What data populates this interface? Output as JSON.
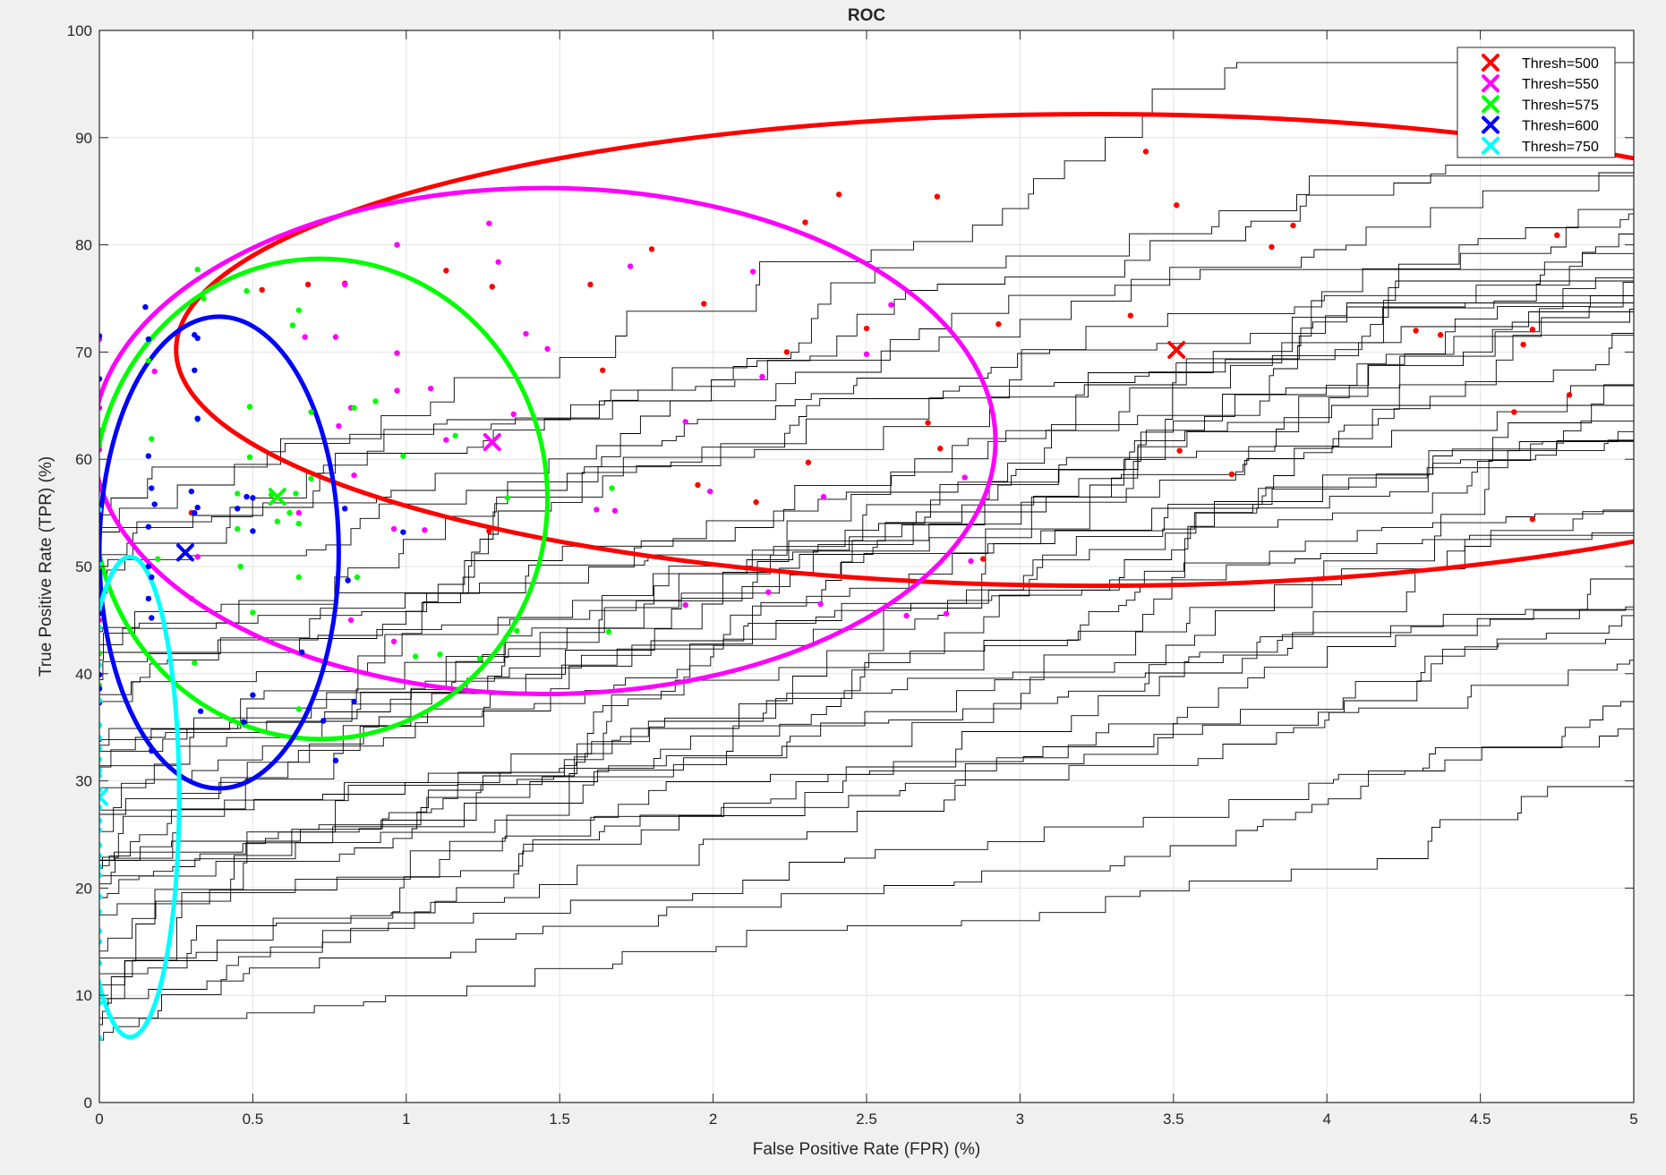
{
  "chart_data": {
    "type": "scatter",
    "title": "ROC",
    "xlabel": "False Positive Rate (FPR) (%)",
    "ylabel": "True Positive Rate (TPR) (%)",
    "xlim": [
      0,
      5
    ],
    "ylim": [
      0,
      100
    ],
    "x_ticks": [
      0,
      0.5,
      1,
      1.5,
      2,
      2.5,
      3,
      3.5,
      4,
      4.5,
      5
    ],
    "y_ticks": [
      0,
      10,
      20,
      30,
      40,
      50,
      60,
      70,
      80,
      90,
      100
    ],
    "x_tick_labels": [
      "0",
      "0.5",
      "1",
      "1.5",
      "2",
      "2.5",
      "3",
      "3.5",
      "4",
      "4.5",
      "5"
    ],
    "y_tick_labels": [
      "0",
      "10",
      "20",
      "30",
      "40",
      "50",
      "60",
      "70",
      "80",
      "90",
      "100"
    ],
    "grid": true,
    "legend_position": "top-right",
    "curve_color": "#000000",
    "series": [
      {
        "name": "Thresh=500",
        "color": "#ff0000",
        "mean": [
          3.51,
          70.2
        ],
        "ellipse": {
          "cx": 3.25,
          "cy": 70.2,
          "rx": 3.0,
          "ry": 22.0
        },
        "points": [
          [
            0.53,
            75.8
          ],
          [
            0.68,
            76.3
          ],
          [
            0.8,
            76.4
          ],
          [
            1.13,
            77.6
          ],
          [
            1.28,
            76.1
          ],
          [
            1.8,
            79.6
          ],
          [
            1.6,
            76.3
          ],
          [
            1.64,
            68.3
          ],
          [
            1.97,
            74.5
          ],
          [
            1.95,
            57.6
          ],
          [
            2.14,
            56.0
          ],
          [
            2.24,
            70.0
          ],
          [
            2.3,
            82.1
          ],
          [
            2.31,
            59.7
          ],
          [
            2.41,
            84.7
          ],
          [
            2.5,
            72.2
          ],
          [
            2.7,
            63.4
          ],
          [
            2.73,
            84.5
          ],
          [
            2.74,
            61.0
          ],
          [
            2.93,
            72.6
          ],
          [
            2.88,
            50.7
          ],
          [
            3.41,
            88.7
          ],
          [
            3.36,
            73.4
          ],
          [
            3.51,
            83.7
          ],
          [
            3.52,
            60.8
          ],
          [
            3.69,
            58.6
          ],
          [
            3.82,
            79.8
          ],
          [
            3.89,
            81.8
          ],
          [
            4.29,
            72.0
          ],
          [
            4.37,
            71.6
          ],
          [
            4.61,
            64.4
          ],
          [
            4.64,
            70.7
          ],
          [
            4.67,
            72.1
          ],
          [
            4.67,
            54.4
          ],
          [
            4.75,
            80.9
          ],
          [
            4.79,
            66.0
          ],
          [
            0.3,
            55.0
          ],
          [
            1.27,
            53.3
          ]
        ]
      },
      {
        "name": "Thresh=550",
        "color": "#ff00ff",
        "mean": [
          1.28,
          61.6
        ],
        "ellipse": {
          "cx": 1.45,
          "cy": 61.7,
          "rx": 1.47,
          "ry": 23.6
        },
        "points": [
          [
            0.0,
            71.2
          ],
          [
            0.0,
            64.8
          ],
          [
            0.0,
            60.9
          ],
          [
            0.0,
            55.0
          ],
          [
            0.0,
            45.0
          ],
          [
            0.18,
            68.2
          ],
          [
            0.32,
            50.9
          ],
          [
            0.3,
            47.0
          ],
          [
            0.65,
            55.0
          ],
          [
            0.67,
            71.4
          ],
          [
            0.77,
            71.4
          ],
          [
            0.78,
            63.1
          ],
          [
            0.8,
            76.3
          ],
          [
            0.82,
            64.8
          ],
          [
            0.83,
            58.5
          ],
          [
            0.82,
            45.0
          ],
          [
            0.96,
            53.5
          ],
          [
            0.97,
            80.0
          ],
          [
            0.97,
            69.9
          ],
          [
            0.97,
            66.4
          ],
          [
            0.96,
            43.0
          ],
          [
            1.06,
            53.4
          ],
          [
            1.08,
            66.6
          ],
          [
            1.13,
            61.8
          ],
          [
            1.27,
            82.0
          ],
          [
            1.3,
            78.4
          ],
          [
            1.35,
            64.2
          ],
          [
            1.39,
            71.7
          ],
          [
            1.46,
            70.3
          ],
          [
            1.62,
            55.3
          ],
          [
            1.68,
            55.2
          ],
          [
            1.73,
            78.0
          ],
          [
            1.91,
            63.5
          ],
          [
            1.91,
            46.4
          ],
          [
            1.99,
            57.0
          ],
          [
            2.13,
            77.5
          ],
          [
            2.16,
            67.7
          ],
          [
            2.18,
            47.6
          ],
          [
            2.35,
            46.5
          ],
          [
            2.36,
            56.5
          ],
          [
            2.5,
            69.8
          ],
          [
            2.58,
            74.4
          ],
          [
            2.63,
            45.4
          ],
          [
            2.76,
            45.6
          ],
          [
            2.82,
            58.3
          ],
          [
            2.84,
            50.5
          ]
        ]
      },
      {
        "name": "Thresh=575",
        "color": "#00ff00",
        "mean": [
          0.58,
          56.5
        ],
        "ellipse": {
          "cx": 0.72,
          "cy": 56.3,
          "rx": 0.74,
          "ry": 22.4
        },
        "points": [
          [
            0.0,
            62.7
          ],
          [
            0.0,
            61.3
          ],
          [
            0.0,
            50.0
          ],
          [
            0.0,
            41.9
          ],
          [
            0.0,
            38.9
          ],
          [
            0.16,
            69.2
          ],
          [
            0.17,
            61.9
          ],
          [
            0.19,
            50.7
          ],
          [
            0.32,
            77.7
          ],
          [
            0.32,
            63.7
          ],
          [
            0.31,
            41.0
          ],
          [
            0.34,
            75.0
          ],
          [
            0.45,
            56.8
          ],
          [
            0.45,
            53.5
          ],
          [
            0.46,
            50.0
          ],
          [
            0.48,
            75.7
          ],
          [
            0.49,
            64.9
          ],
          [
            0.49,
            60.2
          ],
          [
            0.5,
            45.7
          ],
          [
            0.56,
            56.7
          ],
          [
            0.58,
            54.2
          ],
          [
            0.62,
            55.0
          ],
          [
            0.63,
            72.5
          ],
          [
            0.64,
            56.8
          ],
          [
            0.65,
            36.7
          ],
          [
            0.65,
            73.9
          ],
          [
            0.65,
            49.0
          ],
          [
            0.65,
            54.0
          ],
          [
            0.69,
            58.2
          ],
          [
            0.69,
            64.4
          ],
          [
            0.83,
            64.8
          ],
          [
            0.84,
            49.0
          ],
          [
            0.9,
            65.4
          ],
          [
            1.03,
            41.6
          ],
          [
            1.11,
            41.8
          ],
          [
            1.16,
            62.2
          ],
          [
            1.24,
            41.4
          ],
          [
            1.33,
            56.4
          ],
          [
            1.36,
            44.0
          ],
          [
            1.67,
            57.3
          ],
          [
            1.66,
            43.9
          ],
          [
            0.99,
            60.3
          ]
        ]
      },
      {
        "name": "Thresh=600",
        "color": "#0000ff",
        "mean": [
          0.28,
          51.3
        ],
        "ellipse": {
          "cx": 0.39,
          "cy": 51.3,
          "rx": 0.39,
          "ry": 22.0
        },
        "points": [
          [
            0.0,
            71.5
          ],
          [
            0.0,
            67.5
          ],
          [
            0.0,
            54.8
          ],
          [
            0.0,
            54.1
          ],
          [
            0.0,
            45.6
          ],
          [
            0.0,
            39.9
          ],
          [
            0.0,
            38.6
          ],
          [
            0.0,
            37.3
          ],
          [
            0.0,
            33.9
          ],
          [
            0.15,
            74.2
          ],
          [
            0.16,
            71.2
          ],
          [
            0.16,
            60.3
          ],
          [
            0.17,
            57.3
          ],
          [
            0.18,
            55.8
          ],
          [
            0.16,
            53.7
          ],
          [
            0.16,
            50.0
          ],
          [
            0.17,
            49.0
          ],
          [
            0.16,
            47.0
          ],
          [
            0.17,
            45.2
          ],
          [
            0.17,
            32.8
          ],
          [
            0.31,
            71.6
          ],
          [
            0.32,
            71.3
          ],
          [
            0.31,
            68.3
          ],
          [
            0.32,
            63.8
          ],
          [
            0.3,
            57.0
          ],
          [
            0.32,
            55.5
          ],
          [
            0.31,
            55.0
          ],
          [
            0.33,
            36.5
          ],
          [
            0.45,
            55.4
          ],
          [
            0.48,
            56.5
          ],
          [
            0.5,
            56.4
          ],
          [
            0.5,
            53.3
          ],
          [
            0.5,
            38.0
          ],
          [
            0.47,
            35.5
          ],
          [
            0.66,
            42.0
          ],
          [
            0.73,
            35.6
          ],
          [
            0.77,
            31.9
          ],
          [
            0.81,
            48.7
          ],
          [
            0.8,
            55.4
          ],
          [
            0.83,
            37.4
          ],
          [
            0.99,
            53.2
          ]
        ]
      },
      {
        "name": "Thresh=750",
        "color": "#00ffff",
        "mean": [
          0.0,
          28.5
        ],
        "ellipse": {
          "cx": 0.1,
          "cy": 28.5,
          "rx": 0.16,
          "ry": 22.4
        },
        "points": [
          [
            0.0,
            55.3
          ],
          [
            0.0,
            50.2
          ],
          [
            0.0,
            46.7
          ],
          [
            0.0,
            44.3
          ],
          [
            0.0,
            40.8
          ],
          [
            0.0,
            37.5
          ],
          [
            0.0,
            35.2
          ],
          [
            0.0,
            34.0
          ],
          [
            0.0,
            33.0
          ],
          [
            0.0,
            32.0
          ],
          [
            0.0,
            31.0
          ],
          [
            0.0,
            30.5
          ],
          [
            0.0,
            29.2
          ],
          [
            0.0,
            27.5
          ],
          [
            0.0,
            26.3
          ],
          [
            0.0,
            25.4
          ],
          [
            0.0,
            24.0
          ],
          [
            0.0,
            23.0
          ],
          [
            0.0,
            22.0
          ],
          [
            0.0,
            21.2
          ],
          [
            0.0,
            19.2
          ],
          [
            0.0,
            17.8
          ],
          [
            0.0,
            16.0
          ],
          [
            0.0,
            15.0
          ],
          [
            0.0,
            13.0
          ],
          [
            0.0,
            10.2
          ],
          [
            0.0,
            9.3
          ],
          [
            0.0,
            6.0
          ]
        ]
      }
    ]
  }
}
